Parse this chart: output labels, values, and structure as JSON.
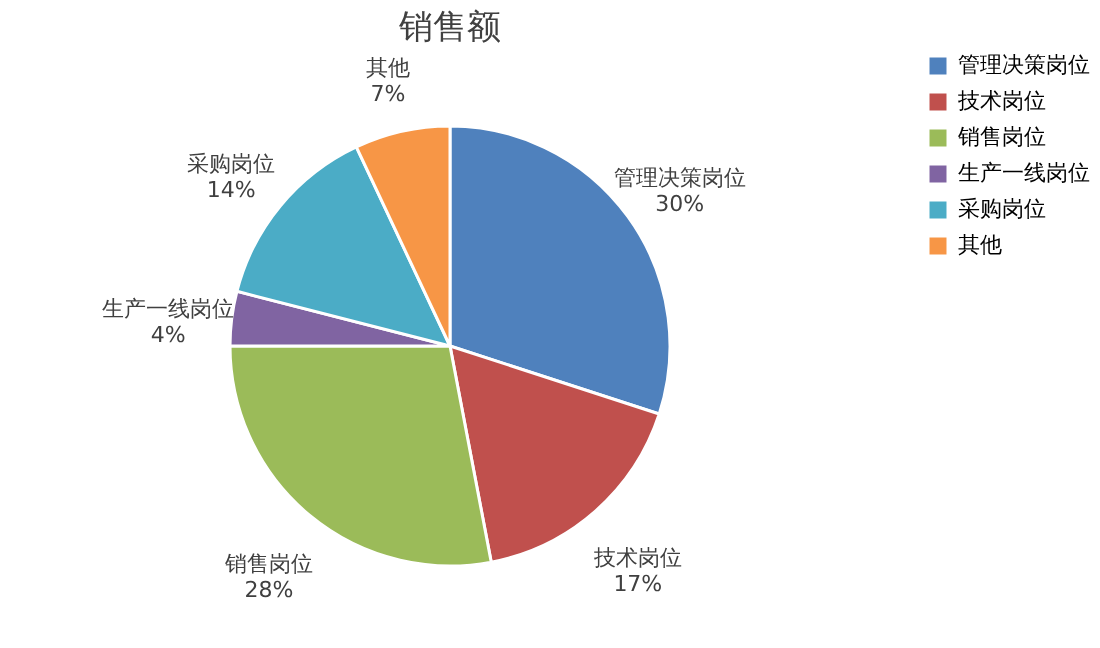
{
  "chart_data": {
    "type": "pie",
    "title": "销售额",
    "categories": [
      "管理决策岗位",
      "技术岗位",
      "销售岗位",
      "生产一线岗位",
      "采购岗位",
      "其他"
    ],
    "values": [
      30,
      17,
      28,
      4,
      14,
      7
    ],
    "value_labels": [
      "30%",
      "17%",
      "28%",
      "4%",
      "14%",
      "7%"
    ],
    "colors": [
      "#4f81bd",
      "#c0504d",
      "#9bbb59",
      "#8064a2",
      "#4bacc6",
      "#f79646"
    ],
    "data_labels": true,
    "legend": "right"
  }
}
